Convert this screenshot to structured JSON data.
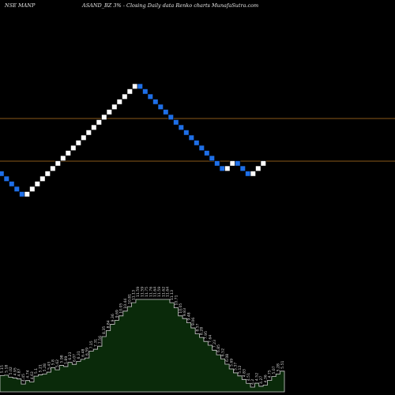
{
  "header": {
    "left": "NSE MANP",
    "right": "ASAND_BZ 3% -  Closing Daily data  Renko  charts MunafaSutra.com"
  },
  "colors": {
    "background": "#000000",
    "up_brick": "#ffffff",
    "down_brick": "#1e6fe8",
    "ref_line": "#8a5a1a",
    "volume_fill": "#0a2a0a",
    "volume_stroke": "#cfcfcf",
    "label_text": "#d8d8d8"
  },
  "chart_data": {
    "type": "renko",
    "bricks": [
      "down",
      "down",
      "down",
      "down",
      "down",
      "up",
      "up",
      "up",
      "up",
      "up",
      "up",
      "up",
      "up",
      "up",
      "up",
      "up",
      "up",
      "up",
      "up",
      "up",
      "up",
      "up",
      "up",
      "up",
      "up",
      "up",
      "up",
      "down",
      "down",
      "down",
      "down",
      "down",
      "down",
      "down",
      "down",
      "down",
      "down",
      "down",
      "down",
      "down",
      "down",
      "down",
      "down",
      "down",
      "up",
      "up",
      "down",
      "down",
      "down",
      "up",
      "up",
      "up"
    ],
    "reference_lines": [
      3.6,
      6.6
    ],
    "volume_labels": [
      "5.15",
      "5.18",
      "5.02",
      "4.95",
      "4.87",
      "4.45",
      "4.74",
      "4.63",
      "5.1",
      "5.21",
      "5.28",
      "5.43",
      "5.8",
      "5.62",
      "5.98",
      "5.89",
      "6.23",
      "6.07",
      "6.31",
      "6.48",
      "6.59",
      "7.15",
      "7.31",
      "7.56",
      "8.35",
      "8.84",
      "9.36",
      "9.69",
      "10.05",
      "10.44",
      "10.81",
      "11.13",
      "11.59",
      "11.59",
      "11.75",
      "11.76",
      "11.64",
      "11.59",
      "11.62",
      "11.64",
      "11.13",
      "10.71",
      "10.05",
      "9.83",
      "9.48",
      "9.06",
      "8.57",
      "8.28",
      "7.95",
      "7.64",
      "7.23",
      "6.85",
      "6.52",
      "6.08",
      "5.69",
      "5.37",
      "5.12",
      "4.83",
      "4.51",
      "4.2",
      "4.52",
      "4.27",
      "4.36",
      "4.75",
      "5.07",
      "5.28",
      "5.51"
    ]
  }
}
